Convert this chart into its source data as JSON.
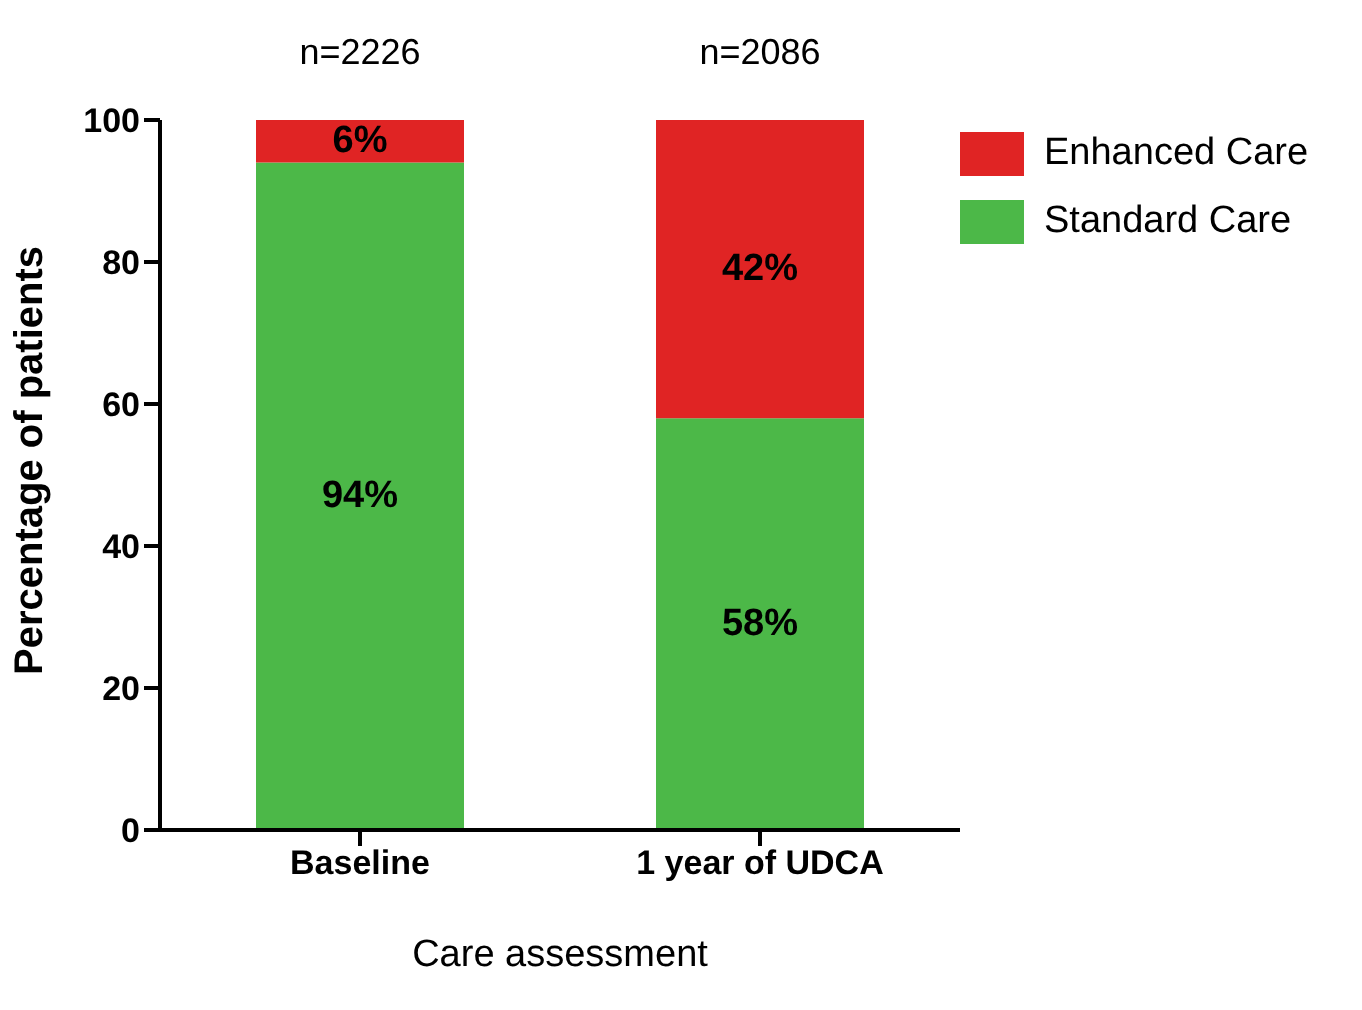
{
  "chart_data": {
    "type": "bar",
    "stacked": true,
    "xlabel": "Care assessment",
    "ylabel": "Percentage of patients",
    "categories": [
      "Baseline",
      "1 year of UDCA"
    ],
    "series": [
      {
        "name": "Standard Care",
        "color": "#4cb848",
        "values": [
          94,
          58
        ],
        "value_labels": [
          "94%",
          "58%"
        ]
      },
      {
        "name": "Enhanced Care",
        "color": "#e02424",
        "values": [
          6,
          42
        ],
        "value_labels": [
          "6%",
          "42%"
        ]
      }
    ],
    "ylim": [
      0,
      100
    ],
    "yticks": [
      0,
      20,
      40,
      60,
      80,
      100
    ],
    "grid": false,
    "legend": "top right",
    "annotations": [
      "n=2226",
      "n=2086"
    ]
  }
}
